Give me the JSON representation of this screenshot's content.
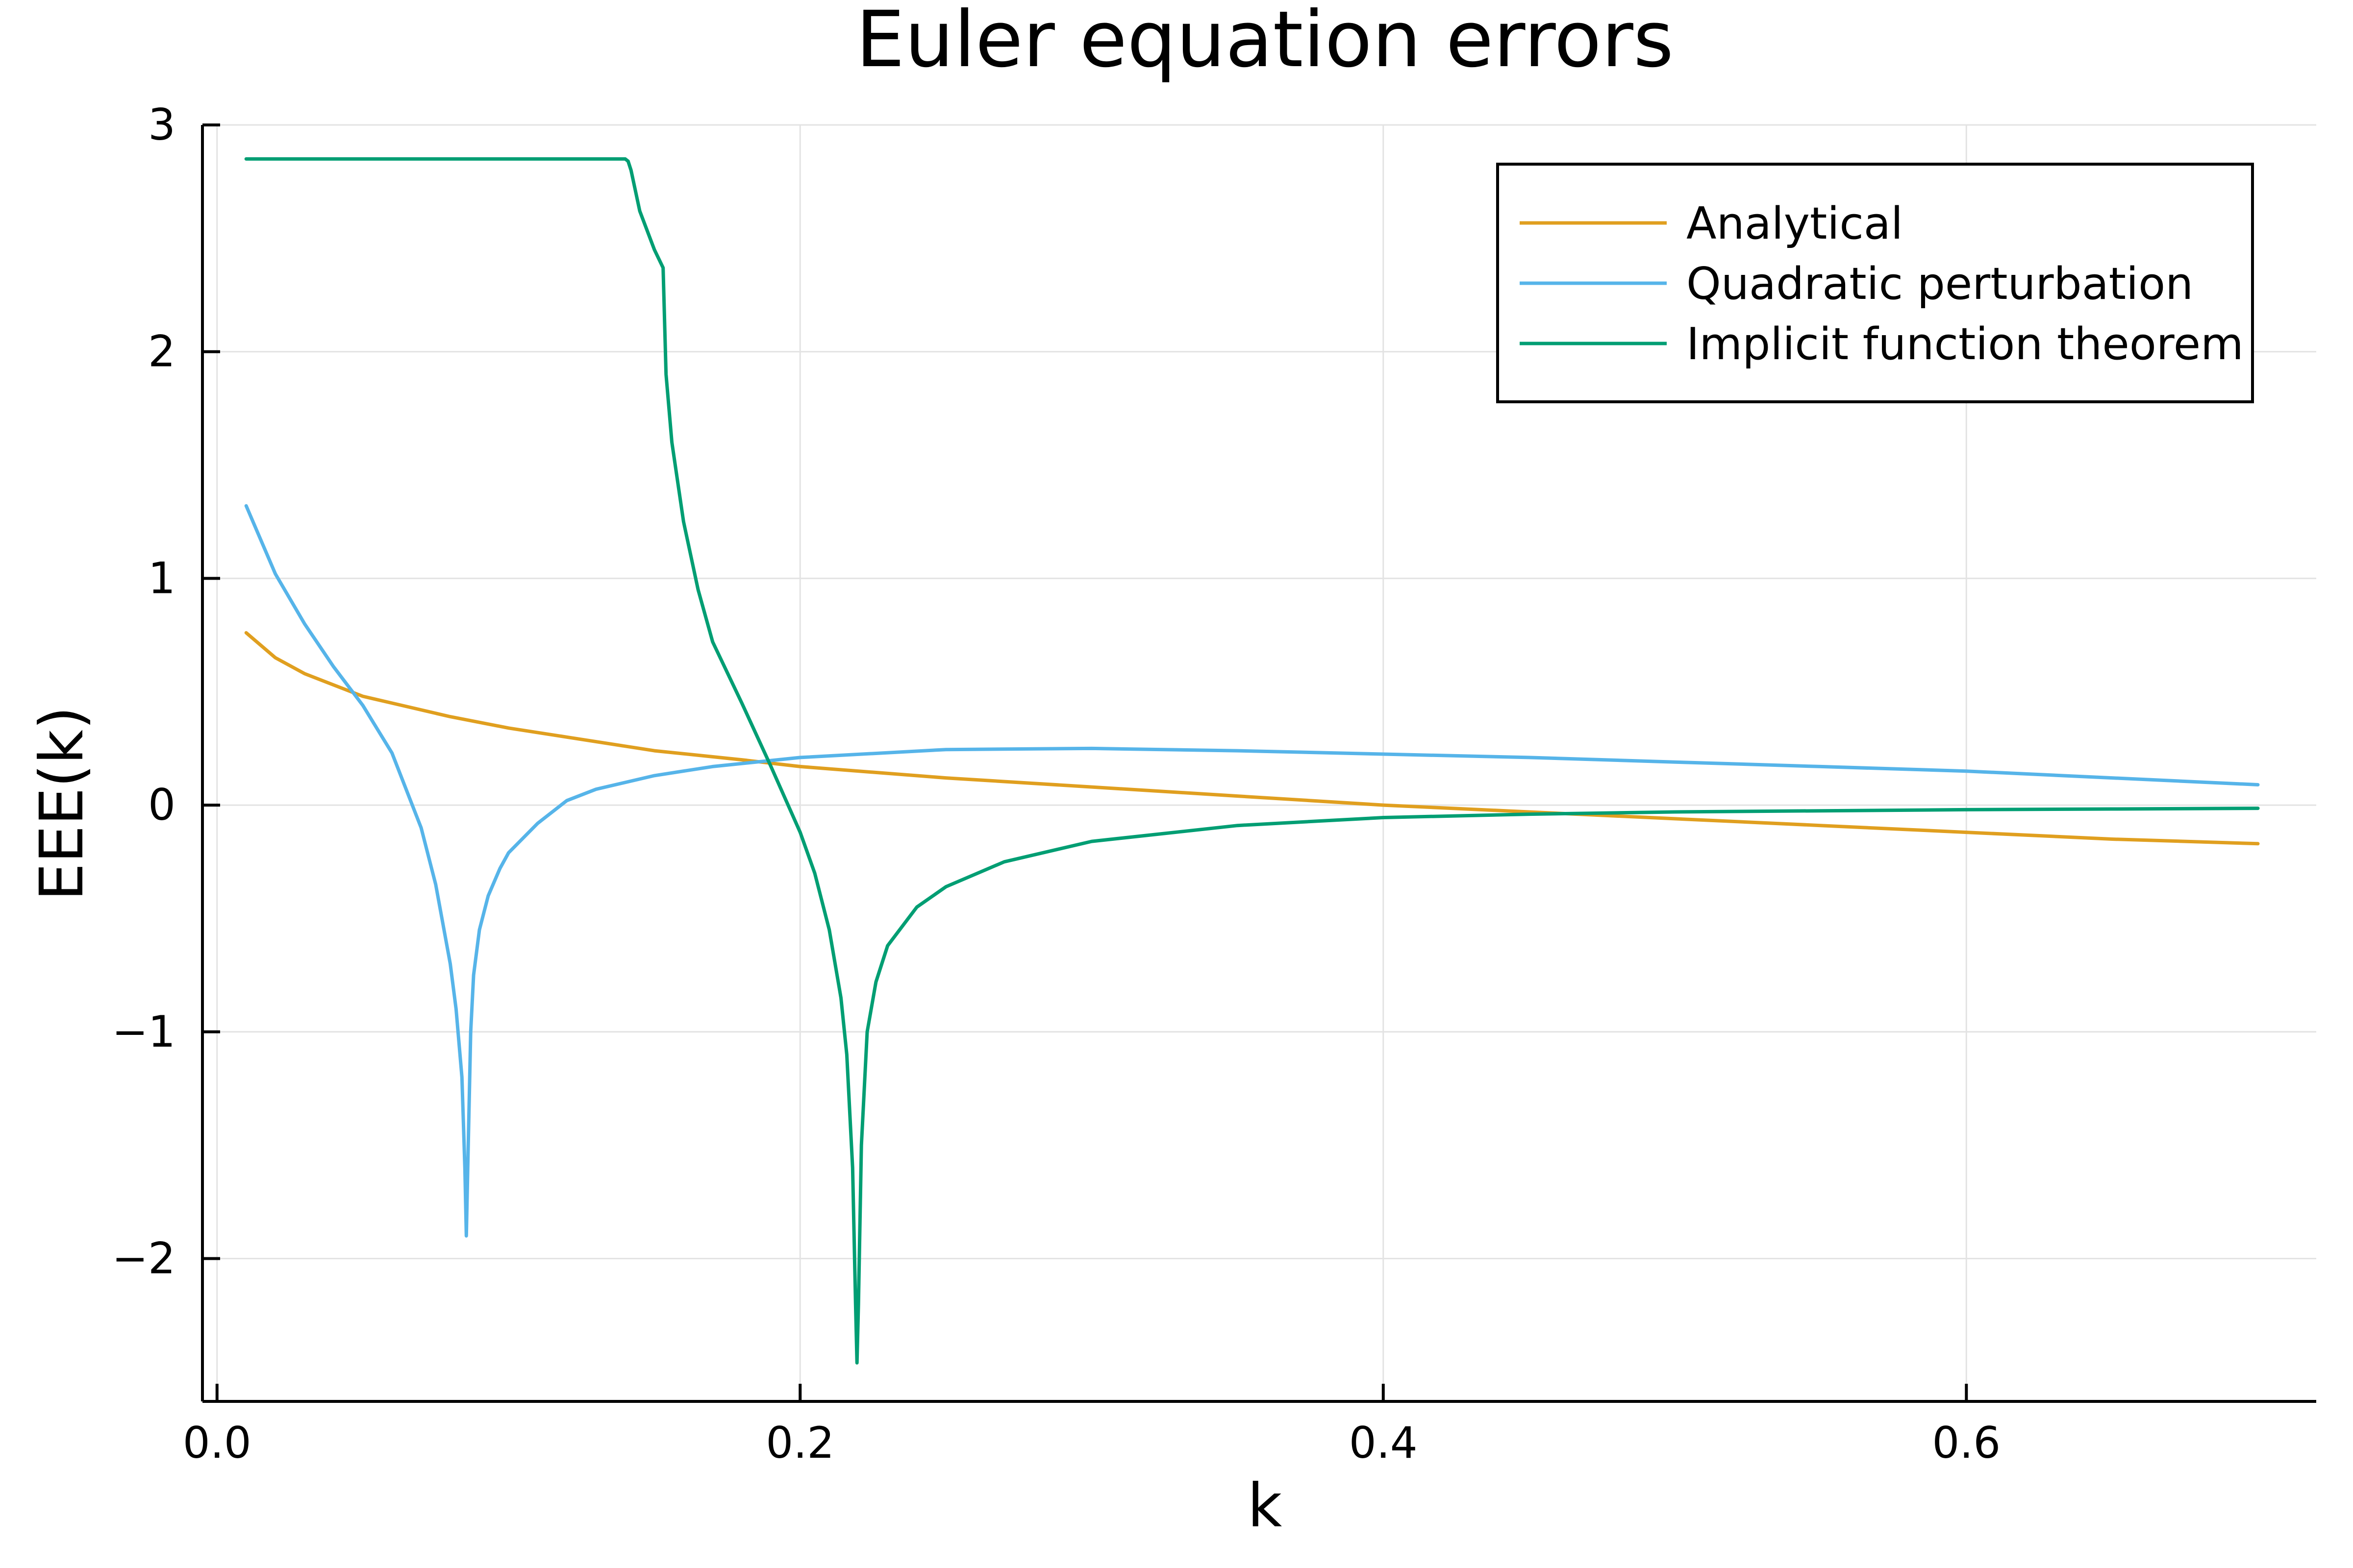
{
  "chart_data": {
    "type": "line",
    "title": "Euler equation errors",
    "xlabel": "k",
    "ylabel": "EEE(k)",
    "xlim": [
      -0.005,
      0.72
    ],
    "ylim": [
      -2.63,
      3.0
    ],
    "xticks": [
      0.0,
      0.2,
      0.4,
      0.6
    ],
    "xtick_labels": [
      "0.0",
      "0.2",
      "0.4",
      "0.6"
    ],
    "yticks": [
      -2,
      -1,
      0,
      1,
      2,
      3
    ],
    "ytick_labels": [
      "−2",
      "−1",
      "0",
      "1",
      "2",
      "3"
    ],
    "grid": true,
    "legend_position": "top-right",
    "series": [
      {
        "name": "Analytical",
        "color": "#e09f1f",
        "x": [
          0.01,
          0.02,
          0.03,
          0.04,
          0.05,
          0.06,
          0.08,
          0.1,
          0.12,
          0.15,
          0.18,
          0.2,
          0.25,
          0.3,
          0.35,
          0.4,
          0.45,
          0.5,
          0.55,
          0.6,
          0.65,
          0.7
        ],
        "y": [
          0.76,
          0.65,
          0.58,
          0.53,
          0.48,
          0.45,
          0.39,
          0.34,
          0.3,
          0.24,
          0.2,
          0.17,
          0.12,
          0.08,
          0.04,
          0.0,
          -0.03,
          -0.06,
          -0.09,
          -0.12,
          -0.15,
          -0.17
        ]
      },
      {
        "name": "Quadratic perturbation",
        "color": "#56b4e9",
        "x": [
          0.01,
          0.02,
          0.03,
          0.04,
          0.05,
          0.06,
          0.07,
          0.075,
          0.08,
          0.082,
          0.084,
          0.085,
          0.0855,
          0.086,
          0.087,
          0.088,
          0.09,
          0.093,
          0.097,
          0.1,
          0.11,
          0.12,
          0.13,
          0.15,
          0.17,
          0.2,
          0.25,
          0.3,
          0.35,
          0.4,
          0.45,
          0.5,
          0.55,
          0.6,
          0.65,
          0.7
        ],
        "y": [
          1.32,
          1.02,
          0.8,
          0.61,
          0.44,
          0.23,
          -0.1,
          -0.35,
          -0.7,
          -0.9,
          -1.2,
          -1.6,
          -1.9,
          -1.6,
          -1.0,
          -0.75,
          -0.55,
          -0.4,
          -0.28,
          -0.21,
          -0.08,
          0.02,
          0.07,
          0.13,
          0.17,
          0.21,
          0.245,
          0.25,
          0.24,
          0.225,
          0.21,
          0.19,
          0.17,
          0.15,
          0.12,
          0.09
        ]
      },
      {
        "name": "Implicit function theorem",
        "color": "#009e73",
        "x": [
          0.01,
          0.05,
          0.1,
          0.14,
          0.141,
          0.142,
          0.145,
          0.15,
          0.153,
          0.154,
          0.156,
          0.16,
          0.165,
          0.17,
          0.18,
          0.19,
          0.2,
          0.205,
          0.21,
          0.214,
          0.216,
          0.218,
          0.219,
          0.2195,
          0.22,
          0.221,
          0.223,
          0.226,
          0.23,
          0.24,
          0.25,
          0.27,
          0.3,
          0.35,
          0.4,
          0.45,
          0.5,
          0.55,
          0.6,
          0.65,
          0.7
        ],
        "y": [
          2.85,
          2.85,
          2.85,
          2.85,
          2.84,
          2.8,
          2.62,
          2.45,
          2.37,
          1.9,
          1.6,
          1.25,
          0.95,
          0.72,
          0.45,
          0.17,
          -0.12,
          -0.3,
          -0.55,
          -0.85,
          -1.1,
          -1.6,
          -2.2,
          -2.46,
          -2.2,
          -1.5,
          -1.0,
          -0.78,
          -0.62,
          -0.45,
          -0.36,
          -0.25,
          -0.16,
          -0.09,
          -0.055,
          -0.04,
          -0.03,
          -0.025,
          -0.02,
          -0.017,
          -0.014
        ]
      }
    ]
  }
}
